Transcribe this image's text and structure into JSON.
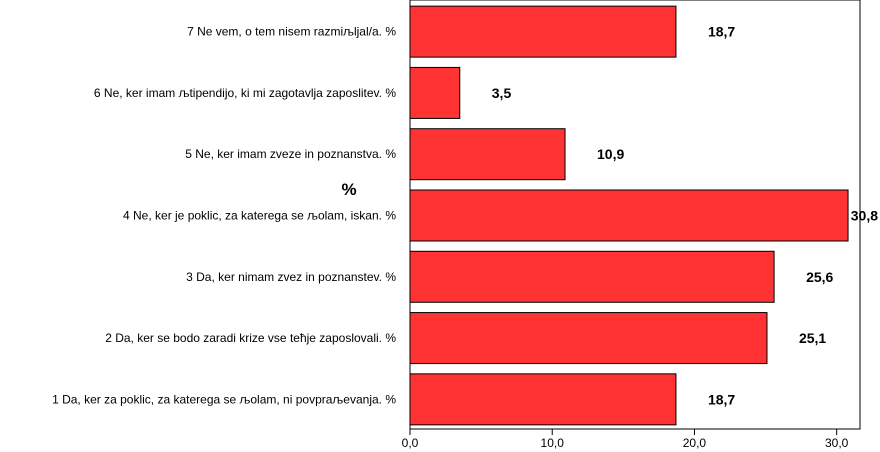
{
  "chart_data": {
    "type": "bar",
    "orientation": "horizontal",
    "ylabel": "%",
    "xlim": [
      0,
      31.5
    ],
    "xticks": [
      0,
      10,
      20,
      30
    ],
    "xtick_labels": [
      "0,0",
      "10,0",
      "20,0",
      "30,0"
    ],
    "bar_color": "#ff3333",
    "categories": [
      "7  Ne vem, o tem nisem razmiљljal/a. %",
      "6  Ne, ker imam љtipendijo, ki mi zagotavlja zaposlitev. %",
      "5  Ne, ker imam zveze in poznanstva. %",
      "4  Ne, ker je poklic, za katerega se љolam, iskan. %",
      "3  Da, ker nimam zvez in poznanstev. %",
      "2  Da, ker se bodo zaradi krize vse teћje zaposlovali. %",
      "1  Da, ker za poklic, za katerega se љolam, ni povpraљevanja. %"
    ],
    "values": [
      18.7,
      3.5,
      10.9,
      30.8,
      25.6,
      25.1,
      18.7
    ],
    "value_labels": [
      "18,7",
      "3,5",
      "10,9",
      "30,8",
      "25,6",
      "25,1",
      "18,7"
    ]
  }
}
